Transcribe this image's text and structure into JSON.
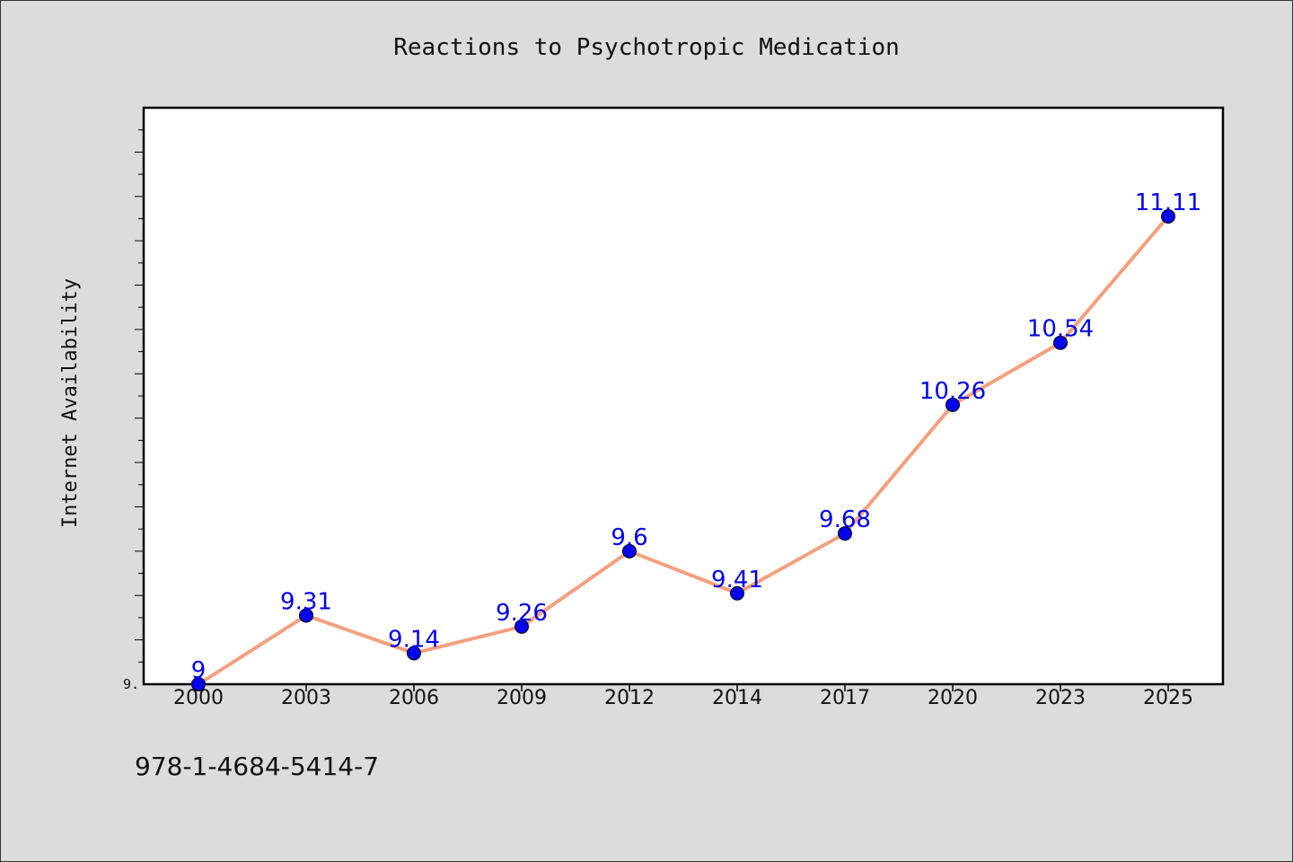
{
  "chart_data": {
    "type": "line",
    "title": "Reactions to Psychotropic Medication",
    "xlabel": "",
    "ylabel": "Internet Availability",
    "categories": [
      "2000",
      "2003",
      "2006",
      "2009",
      "2012",
      "2014",
      "2017",
      "2020",
      "2023",
      "2025"
    ],
    "series": [
      {
        "values": [
          9,
          9.31,
          9.14,
          9.26,
          9.6,
          9.41,
          9.68,
          10.26,
          10.54,
          11.11
        ]
      }
    ],
    "data_labels": [
      "9",
      "9.31",
      "9.14",
      "9.26",
      "9.6",
      "9.41",
      "9.68",
      "10.26",
      "10.54",
      "11.11"
    ],
    "ylim": [
      9.0,
      11.6
    ],
    "y_tick_label": "9.",
    "grid": false,
    "legend": "none"
  },
  "footer": {
    "isbn": "978-1-4684-5414-7"
  },
  "colors": {
    "background": "#dcdcdc",
    "plot_background": "#ffffff",
    "line": "#f4a07f",
    "marker": "#0000ee",
    "data_label": "#0000ee"
  }
}
